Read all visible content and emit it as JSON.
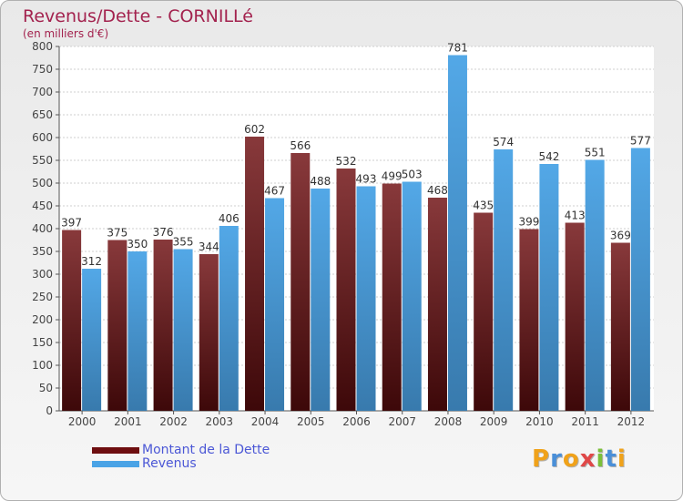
{
  "chart_data": {
    "type": "bar",
    "title": "Revenus/Dette - CORNILLé",
    "subtitle": "(en milliers d'€)",
    "categories": [
      "2000",
      "2001",
      "2002",
      "2003",
      "2004",
      "2005",
      "2006",
      "2007",
      "2008",
      "2009",
      "2010",
      "2011",
      "2012"
    ],
    "series": [
      {
        "name": "Montant de la Dette",
        "color": "#6e0e10",
        "values": [
          397,
          375,
          376,
          344,
          602,
          566,
          532,
          499,
          468,
          435,
          399,
          413,
          369
        ]
      },
      {
        "name": "Revenus",
        "color": "#4aa3e6",
        "values": [
          312,
          350,
          355,
          406,
          467,
          488,
          493,
          503,
          781,
          574,
          542,
          551,
          577
        ]
      }
    ],
    "ylim": [
      0,
      800
    ],
    "ytick_step": 50,
    "grid": true,
    "legend_position": "bottom-left"
  },
  "logo": {
    "letters": [
      "P",
      "r",
      "o",
      "x",
      "i",
      "t",
      "i"
    ],
    "colors": [
      "#f0a21a",
      "#4a8fd8",
      "#f0a21a",
      "#e04848",
      "#7bbf3a",
      "#4a8fd8",
      "#f0a21a"
    ]
  }
}
